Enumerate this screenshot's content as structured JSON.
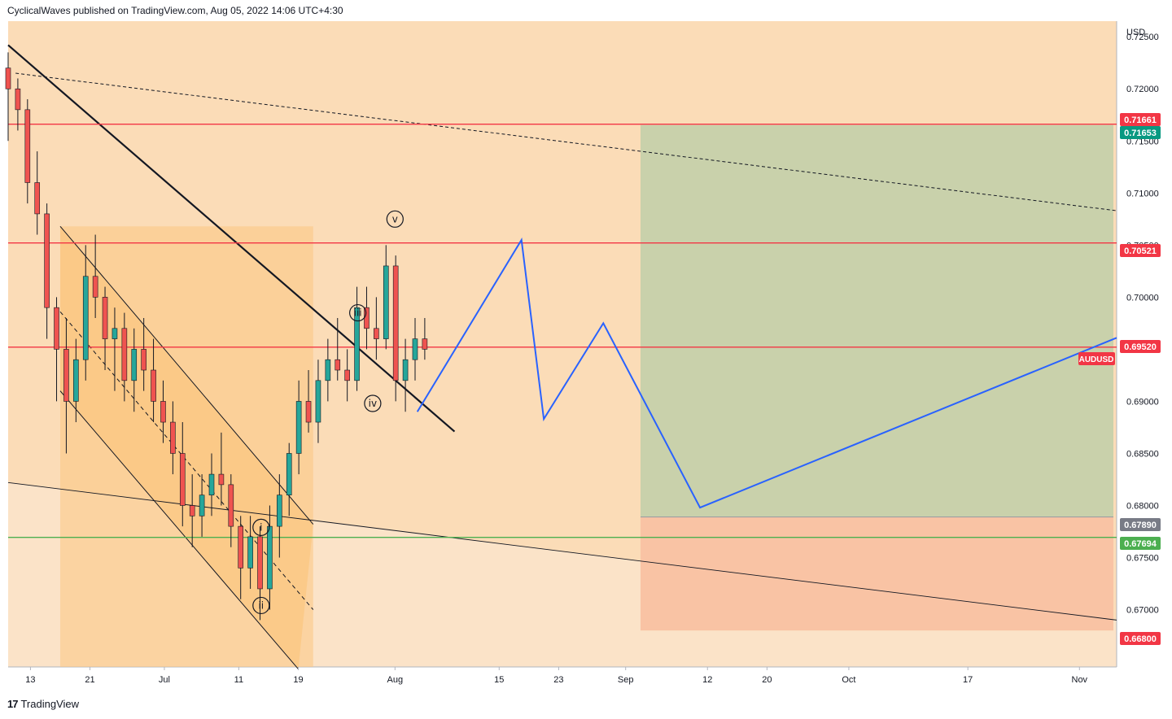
{
  "header": {
    "attribution": "CyclicalWaves published on TradingView.com, Aug 05, 2022 14:06 UTC+4:30"
  },
  "footer": {
    "brand": "TradingView",
    "brand_mark": "17"
  },
  "colors": {
    "background_zone": "#fbdcb7",
    "lower_zone": "#fbe3c8",
    "channel_fill": "#fbc782",
    "target_zone": "#c9d1ab",
    "stop_zone": "#f9c3a4",
    "red_level": "#f23645",
    "green_level": "#4caf50",
    "projection": "#2962ff",
    "candle_up": "#26a69a",
    "candle_down": "#ef5350"
  },
  "chart_data": {
    "type": "candlestick",
    "symbol": "AUDUSD",
    "currency": "USD",
    "y_ticks": [
      "0.72500",
      "0.72000",
      "0.71500",
      "0.71000",
      "0.70500",
      "0.70000",
      "0.69500",
      "0.69000",
      "0.68500",
      "0.68000",
      "0.67500",
      "0.67000"
    ],
    "ylim": [
      0.6645,
      0.7265
    ],
    "x_ticks": [
      {
        "label": "13",
        "date": "2022-06-13"
      },
      {
        "label": "21",
        "date": "2022-06-21"
      },
      {
        "label": "Jul",
        "date": "2022-07-01"
      },
      {
        "label": "11",
        "date": "2022-07-11"
      },
      {
        "label": "19",
        "date": "2022-07-19"
      },
      {
        "label": "Aug",
        "date": "2022-08-01"
      },
      {
        "label": "15",
        "date": "2022-08-15"
      },
      {
        "label": "23",
        "date": "2022-08-23"
      },
      {
        "label": "Sep",
        "date": "2022-09-01"
      },
      {
        "label": "12",
        "date": "2022-09-12"
      },
      {
        "label": "20",
        "date": "2022-09-20"
      },
      {
        "label": "Oct",
        "date": "2022-10-01"
      },
      {
        "label": "17",
        "date": "2022-10-17"
      },
      {
        "label": "Nov",
        "date": "2022-11-01"
      }
    ],
    "price_labels": [
      {
        "value": "0.71661",
        "color": "#f23645"
      },
      {
        "value": "0.71653",
        "color": "#089981"
      },
      {
        "value": "0.70521",
        "color": "#f23645"
      },
      {
        "value": "0.69520",
        "color": "#f23645"
      },
      {
        "value": "0.67890",
        "color": "#787b86"
      },
      {
        "value": "0.67694",
        "color": "#4caf50"
      },
      {
        "value": "0.66800",
        "color": "#f23645"
      }
    ],
    "symbol_tag": "AUDUSD",
    "horizontal_levels": [
      {
        "value": 0.71661,
        "color": "#f23645"
      },
      {
        "value": 0.70521,
        "color": "#f23645"
      },
      {
        "value": 0.6952,
        "color": "#f23645"
      },
      {
        "value": 0.67694,
        "color": "#4caf50"
      }
    ],
    "wave_labels": [
      {
        "text": "i",
        "date": "2022-07-14",
        "price": 0.6779
      },
      {
        "text": "ii",
        "date": "2022-07-14",
        "price": 0.6704
      },
      {
        "text": "iii",
        "date": "2022-07-27",
        "price": 0.6985
      },
      {
        "text": "iv",
        "date": "2022-07-29",
        "price": 0.6898
      },
      {
        "text": "v",
        "date": "2022-08-01",
        "price": 0.7075
      }
    ],
    "projection_path": [
      {
        "date": "2022-08-04",
        "price": 0.689
      },
      {
        "date": "2022-08-18",
        "price": 0.7055
      },
      {
        "date": "2022-08-21",
        "price": 0.6883
      },
      {
        "date": "2022-08-29",
        "price": 0.6975
      },
      {
        "date": "2022-09-11",
        "price": 0.6798
      },
      {
        "date": "2022-11-06",
        "price": 0.6961
      }
    ],
    "trade_box": {
      "start": "2022-09-03",
      "end": "2022-11-06",
      "target": 0.71653,
      "entry": 0.6789,
      "stop": 0.668
    },
    "trendlines": [
      {
        "style": "solid-thick",
        "from": {
          "date": "2022-06-10",
          "price": 0.7242
        },
        "to": {
          "date": "2022-08-09",
          "price": 0.6871
        }
      },
      {
        "style": "dashed",
        "from": {
          "date": "2022-06-11",
          "price": 0.7215
        },
        "to": {
          "date": "2022-11-06",
          "price": 0.7083
        }
      },
      {
        "style": "solid-thin",
        "from": {
          "date": "2022-06-10",
          "price": 0.6822
        },
        "to": {
          "date": "2022-11-06",
          "price": 0.669
        }
      }
    ],
    "channel": {
      "upper": [
        {
          "date": "2022-06-17",
          "price": 0.7068
        },
        {
          "date": "2022-07-21",
          "price": 0.6782
        }
      ],
      "lower": [
        {
          "date": "2022-06-17",
          "price": 0.691
        },
        {
          "date": "2022-07-19",
          "price": 0.6643
        }
      ],
      "mid": [
        {
          "date": "2022-06-17",
          "price": 0.6986
        },
        {
          "date": "2022-07-21",
          "price": 0.67
        }
      ]
    },
    "candles_ohlc": [
      [
        0.722,
        0.7235,
        0.715,
        0.72
      ],
      [
        0.72,
        0.721,
        0.716,
        0.718
      ],
      [
        0.718,
        0.719,
        0.709,
        0.711
      ],
      [
        0.711,
        0.714,
        0.706,
        0.708
      ],
      [
        0.708,
        0.709,
        0.696,
        0.699
      ],
      [
        0.699,
        0.7,
        0.69,
        0.695
      ],
      [
        0.695,
        0.698,
        0.685,
        0.69
      ],
      [
        0.69,
        0.696,
        0.688,
        0.694
      ],
      [
        0.694,
        0.705,
        0.692,
        0.702
      ],
      [
        0.702,
        0.706,
        0.698,
        0.7
      ],
      [
        0.7,
        0.701,
        0.693,
        0.696
      ],
      [
        0.696,
        0.699,
        0.691,
        0.697
      ],
      [
        0.697,
        0.6985,
        0.69,
        0.692
      ],
      [
        0.692,
        0.697,
        0.689,
        0.695
      ],
      [
        0.695,
        0.698,
        0.691,
        0.693
      ],
      [
        0.693,
        0.696,
        0.688,
        0.69
      ],
      [
        0.69,
        0.692,
        0.686,
        0.688
      ],
      [
        0.688,
        0.69,
        0.683,
        0.685
      ],
      [
        0.685,
        0.688,
        0.678,
        0.68
      ],
      [
        0.68,
        0.683,
        0.676,
        0.679
      ],
      [
        0.679,
        0.683,
        0.677,
        0.681
      ],
      [
        0.681,
        0.685,
        0.679,
        0.683
      ],
      [
        0.683,
        0.687,
        0.68,
        0.682
      ],
      [
        0.682,
        0.683,
        0.676,
        0.678
      ],
      [
        0.678,
        0.679,
        0.671,
        0.674
      ],
      [
        0.674,
        0.679,
        0.672,
        0.677
      ],
      [
        0.677,
        0.678,
        0.669,
        0.672
      ],
      [
        0.672,
        0.68,
        0.67,
        0.678
      ],
      [
        0.678,
        0.683,
        0.675,
        0.681
      ],
      [
        0.681,
        0.686,
        0.679,
        0.685
      ],
      [
        0.685,
        0.692,
        0.683,
        0.69
      ],
      [
        0.69,
        0.693,
        0.687,
        0.688
      ],
      [
        0.688,
        0.694,
        0.686,
        0.692
      ],
      [
        0.692,
        0.696,
        0.69,
        0.694
      ],
      [
        0.694,
        0.698,
        0.692,
        0.693
      ],
      [
        0.693,
        0.695,
        0.69,
        0.692
      ],
      [
        0.692,
        0.701,
        0.691,
        0.699
      ],
      [
        0.699,
        0.701,
        0.695,
        0.697
      ],
      [
        0.697,
        0.7,
        0.694,
        0.696
      ],
      [
        0.696,
        0.705,
        0.695,
        0.703
      ],
      [
        0.703,
        0.704,
        0.69,
        0.692
      ],
      [
        0.692,
        0.696,
        0.689,
        0.694
      ],
      [
        0.694,
        0.698,
        0.692,
        0.696
      ],
      [
        0.696,
        0.698,
        0.694,
        0.695
      ]
    ]
  }
}
